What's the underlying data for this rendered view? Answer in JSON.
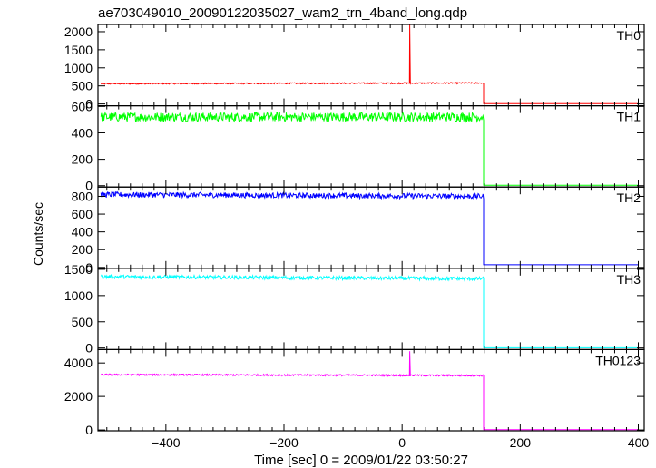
{
  "chart_data": {
    "type": "line",
    "title": "ae703049010_20090122035027_wam2_trn_4band_long.qdp",
    "xlabel": "Time [sec] 0 = 2009/01/22 03:50:27",
    "ylabel": "Counts/sec",
    "xlim": [
      -515,
      410
    ],
    "xticks": [
      -400,
      -200,
      0,
      200,
      400
    ],
    "grid": false,
    "step_time": 138,
    "panels": [
      {
        "name": "TH0",
        "color": "#ff0000",
        "ylim": [
          -50,
          2200
        ],
        "yticks": [
          0,
          500,
          1000,
          1500,
          2000
        ],
        "level_start": 560,
        "level_end": 580,
        "noise": 18,
        "after": 10,
        "spikes": [
          {
            "x": 13,
            "y": 2200
          }
        ]
      },
      {
        "name": "TH1",
        "color": "#00ff00",
        "ylim": [
          -10,
          605
        ],
        "yticks": [
          0,
          200,
          400,
          600
        ],
        "level_start": 520,
        "level_end": 520,
        "noise": 35,
        "after": 3,
        "spikes": []
      },
      {
        "name": "TH2",
        "color": "#0000ff",
        "ylim": [
          -10,
          905
        ],
        "yticks": [
          0,
          200,
          400,
          600,
          800
        ],
        "level_start": 820,
        "level_end": 800,
        "noise": 30,
        "after": 30,
        "spikes": []
      },
      {
        "name": "TH3",
        "color": "#00ffff",
        "ylim": [
          -30,
          1520
        ],
        "yticks": [
          0,
          500,
          1000,
          1500
        ],
        "level_start": 1360,
        "level_end": 1320,
        "noise": 35,
        "after": 5,
        "spikes": []
      },
      {
        "name": "TH0123",
        "color": "#ff00ff",
        "ylim": [
          -50,
          4800
        ],
        "yticks": [
          0,
          2000,
          4000
        ],
        "level_start": 3300,
        "level_end": 3250,
        "noise": 50,
        "after": 15,
        "spikes": [
          {
            "x": 13,
            "y": 4700
          }
        ]
      }
    ]
  }
}
